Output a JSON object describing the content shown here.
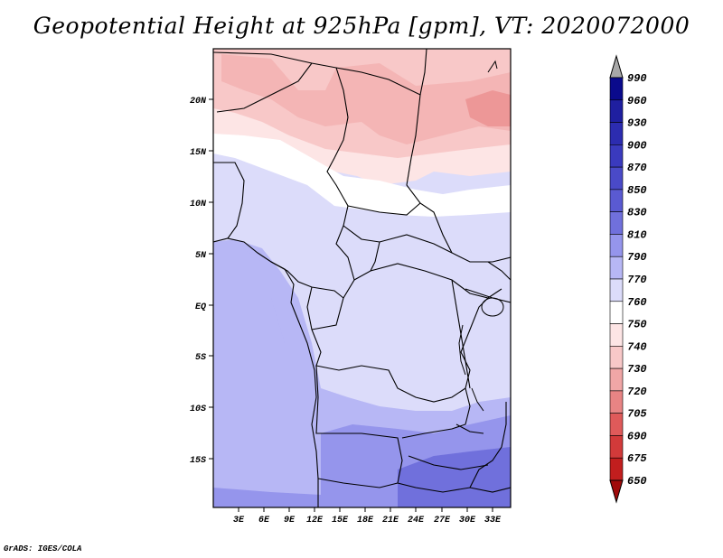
{
  "title": "Geopotential Height at 925hPa [gpm], VT: 2020072000",
  "footer": "GrADS: IGES/COLA",
  "map": {
    "lat_labels": [
      "20N",
      "15N",
      "10N",
      "5N",
      "EQ",
      "5S",
      "10S",
      "15S"
    ],
    "lon_labels": [
      "3E",
      "6E",
      "9E",
      "12E",
      "15E",
      "18E",
      "21E",
      "24E",
      "27E",
      "30E",
      "33E"
    ]
  },
  "colorbar": {
    "levels": [
      "990",
      "960",
      "930",
      "900",
      "870",
      "850",
      "830",
      "810",
      "790",
      "770",
      "760",
      "750",
      "740",
      "730",
      "720",
      "705",
      "690",
      "675",
      "650"
    ],
    "colors": [
      "#0a0a8c",
      "#1f1fa0",
      "#2c2cb0",
      "#3a3abe",
      "#4a4ac8",
      "#5a5ad2",
      "#7070dc",
      "#9595ec",
      "#b7b7f5",
      "#dcdcfa",
      "#ffffff",
      "#fde5e5",
      "#f8c8c8",
      "#f0a6a6",
      "#e88484",
      "#df5a5a",
      "#d23a3a",
      "#c21e1e",
      "#b30e0e",
      "#a00a0a"
    ]
  }
}
